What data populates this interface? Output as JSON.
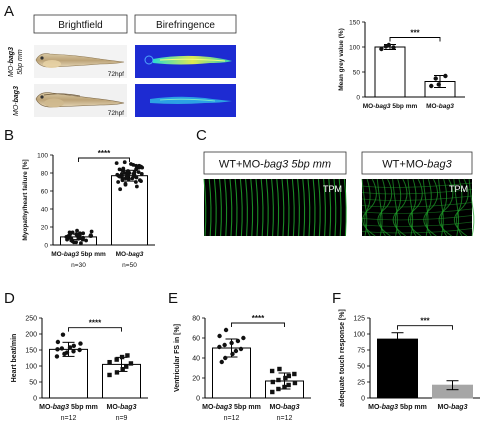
{
  "panels": {
    "A": {
      "letter": "A",
      "brightfield_label": "Brightfield",
      "birefringence_label": "Birefringence",
      "row1_label_pre": "MO-",
      "row1_label_gene": "bag3",
      "row1_label_post": "5bp mm",
      "row2_label_pre": "MO-",
      "row2_label_gene": "bag3",
      "stage_label": "72hpf",
      "colors": {
        "embryo": "#c9b48e",
        "yolk": "#e7d2a4",
        "bf_bg": "#f3f3f3",
        "biref_bg": "#1d2bd2",
        "biref_muscle": "#3fe0b0",
        "biref_core": "#e8f04a"
      }
    },
    "B": {
      "letter": "B"
    },
    "C": {
      "letter": "C",
      "left_label_pre": "WT+MO-",
      "left_label_gene": "bag3",
      "left_label_post": " 5bp mm",
      "right_label_pre": "WT+MO-",
      "right_label_gene": "bag3",
      "tpm_label": "TPM",
      "colors": {
        "bg": "#000000",
        "fiber": "#1fa32b"
      }
    },
    "D": {
      "letter": "D"
    },
    "E": {
      "letter": "E"
    },
    "F": {
      "letter": "F"
    }
  },
  "chart_data": [
    {
      "id": "A",
      "type": "bar",
      "categories": [
        "MO-bag3 5bp mm",
        "MO-bag3"
      ],
      "tick_labels": [
        [
          "MO-",
          "bag3",
          " 5bp mm"
        ],
        [
          "MO-",
          "bag3",
          ""
        ]
      ],
      "values": [
        100,
        31
      ],
      "errors": [
        5,
        12
      ],
      "points": [
        [
          96,
          101,
          104,
          99
        ],
        [
          22,
          37,
          25,
          42
        ]
      ],
      "bar_colors": [
        "#ffffff",
        "#ffffff"
      ],
      "ylabel": "Mean grey value (%)",
      "ylim": [
        0,
        150
      ],
      "yticks": [
        0,
        50,
        100,
        150
      ],
      "significance": "***",
      "n_labels": [
        "",
        ""
      ],
      "grid": false
    },
    {
      "id": "B",
      "type": "bar",
      "categories": [
        "MO-bag3 5bp mm",
        "MO-bag3"
      ],
      "tick_labels": [
        [
          "MO-",
          "bag3",
          " 5bp mm"
        ],
        [
          "MO-",
          "bag3",
          ""
        ]
      ],
      "values": [
        9,
        77
      ],
      "errors": [
        3,
        6
      ],
      "points": [
        [
          2,
          3,
          4,
          5,
          6,
          6,
          7,
          7,
          8,
          8,
          8,
          9,
          9,
          9,
          10,
          10,
          10,
          11,
          11,
          12,
          12,
          13,
          13,
          14,
          14,
          15,
          16,
          5,
          11,
          3
        ],
        [
          62,
          65,
          67,
          68,
          70,
          71,
          72,
          72,
          73,
          74,
          74,
          75,
          75,
          76,
          76,
          77,
          77,
          77,
          78,
          78,
          78,
          79,
          79,
          80,
          80,
          80,
          81,
          81,
          82,
          82,
          83,
          83,
          84,
          84,
          85,
          85,
          86,
          86,
          87,
          88,
          88,
          89,
          90,
          91,
          92,
          74,
          79,
          76,
          81,
          70
        ]
      ],
      "bar_colors": [
        "#ffffff",
        "#ffffff"
      ],
      "ylabel": "Myopathy/heart failure [%]",
      "ylim": [
        0,
        100
      ],
      "yticks": [
        0,
        20,
        40,
        60,
        80,
        100
      ],
      "significance": "****",
      "n_labels": [
        "n=30",
        "n=50"
      ],
      "grid": false
    },
    {
      "id": "D",
      "type": "bar",
      "categories": [
        "MO-bag3 5bp mm",
        "MO-bag3"
      ],
      "tick_labels": [
        [
          "MO-",
          "bag3",
          " 5bp mm"
        ],
        [
          "MO-",
          "bag3",
          ""
        ]
      ],
      "values": [
        152,
        105
      ],
      "errors": [
        22,
        22
      ],
      "points": [
        [
          130,
          138,
          142,
          146,
          150,
          152,
          155,
          158,
          163,
          170,
          175,
          198
        ],
        [
          72,
          80,
          90,
          98,
          108,
          112,
          120,
          128,
          133
        ]
      ],
      "bar_colors": [
        "#ffffff",
        "#ffffff"
      ],
      "ylabel": "Heart beat/min",
      "ylim": [
        0,
        250
      ],
      "yticks": [
        0,
        50,
        100,
        150,
        200,
        250
      ],
      "significance": "****",
      "n_labels": [
        "n=12",
        "n=9"
      ],
      "grid": false
    },
    {
      "id": "E",
      "type": "bar",
      "categories": [
        "MO-bag3 5bp mm",
        "MO-bag3"
      ],
      "tick_labels": [
        [
          "MO-",
          "bag3",
          " 5bp mm"
        ],
        [
          "MO-",
          "bag3",
          ""
        ]
      ],
      "values": [
        50,
        17
      ],
      "errors": [
        9,
        8
      ],
      "points": [
        [
          36,
          40,
          44,
          47,
          49,
          51,
          53,
          55,
          57,
          60,
          62,
          68
        ],
        [
          6,
          9,
          11,
          13,
          15,
          16,
          18,
          20,
          22,
          24,
          27,
          29
        ]
      ],
      "bar_colors": [
        "#ffffff",
        "#ffffff"
      ],
      "ylabel": "Ventricular FS in [%]",
      "ylim": [
        0,
        80
      ],
      "yticks": [
        0,
        20,
        40,
        60,
        80
      ],
      "significance": "****",
      "n_labels": [
        "n=12",
        "n=12"
      ],
      "grid": false
    },
    {
      "id": "F",
      "type": "bar",
      "categories": [
        "MO-bag3 5bp mm",
        "MO-bag3"
      ],
      "tick_labels": [
        [
          "MO-",
          "bag3",
          " 5bp mm"
        ],
        [
          "MO-",
          "bag3",
          ""
        ]
      ],
      "values": [
        92,
        20
      ],
      "errors": [
        10,
        7
      ],
      "points": [
        [],
        []
      ],
      "bar_colors": [
        "#000000",
        "#a6a6a6"
      ],
      "ylabel": "adequate touch response [%]",
      "ylim": [
        0,
        125
      ],
      "yticks": [
        0,
        25,
        50,
        75,
        100,
        125
      ],
      "significance": "***",
      "n_labels": [
        "",
        ""
      ],
      "grid": false
    }
  ]
}
